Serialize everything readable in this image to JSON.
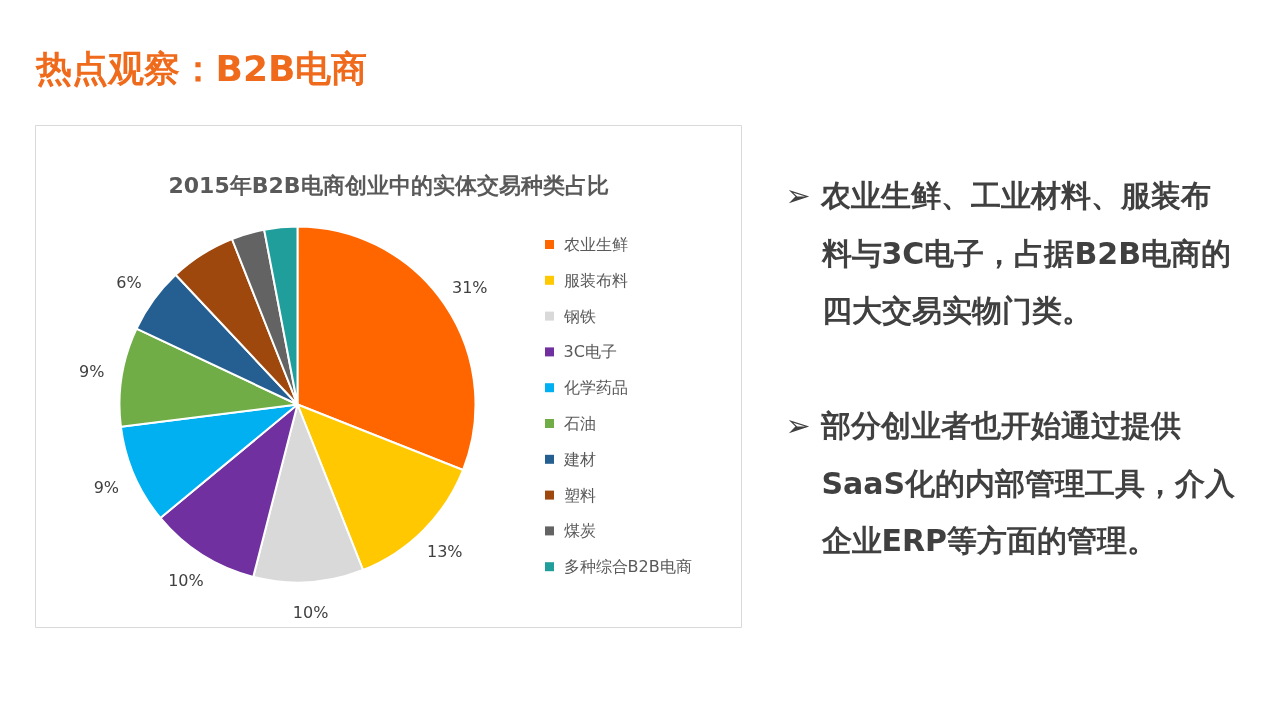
{
  "chart_data": {
    "type": "pie",
    "title": "热点观察：B2B电商",
    "subtitle": "2015年B2B电商创业中的实体交易种类占比",
    "categories": [
      "农业生鲜",
      "服装布料",
      "钢铁",
      "3C电子",
      "化学药品",
      "石油",
      "建材",
      "塑料",
      "煤炭",
      "多种综合B2B电商"
    ],
    "values": [
      31,
      13,
      10,
      10,
      9,
      9,
      6,
      6,
      3,
      3
    ],
    "colors": [
      "#ff6600",
      "#ffc800",
      "#d9d9d9",
      "#7030a0",
      "#00b0f0",
      "#70ad47",
      "#255e91",
      "#9e480e",
      "#636363",
      "#1f9e9b"
    ],
    "value_labels": [
      "31%",
      "13%",
      "10%",
      "10%",
      "9%",
      "9%",
      "6%",
      null,
      null,
      null
    ],
    "legend": "right",
    "annotations": [
      "➢ 农业生鲜、工业材料、服装布料与3C电子，占据B2B电商的四大交易实物门类。",
      "➢ 部分创业者也开始通过提供SaaS化的内部管理工具，介入企业ERP等方面的管理。"
    ]
  }
}
